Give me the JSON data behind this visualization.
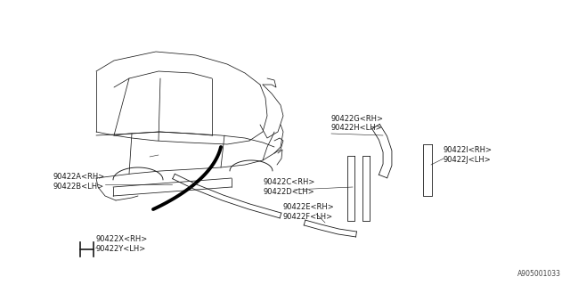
{
  "bg_color": "#ffffff",
  "line_color": "#1a1a1a",
  "footnote": "A905001033",
  "label_fs": 6.0,
  "lw_car": 0.55,
  "lw_tape": 0.6,
  "lw_leader": 0.4,
  "labels": {
    "GH": "90422G<RH>\n90422H<LH>",
    "AB": "90422A<RH>\n90422B<LH>",
    "CD": "90422C<RH>\n90422D<LH>",
    "EF": "90422E<RH>\n90422F<LH>",
    "IJ": "90422I<RH>\n90422J<LH>",
    "XY": "90422X<RH>\n90422Y<LH>"
  }
}
